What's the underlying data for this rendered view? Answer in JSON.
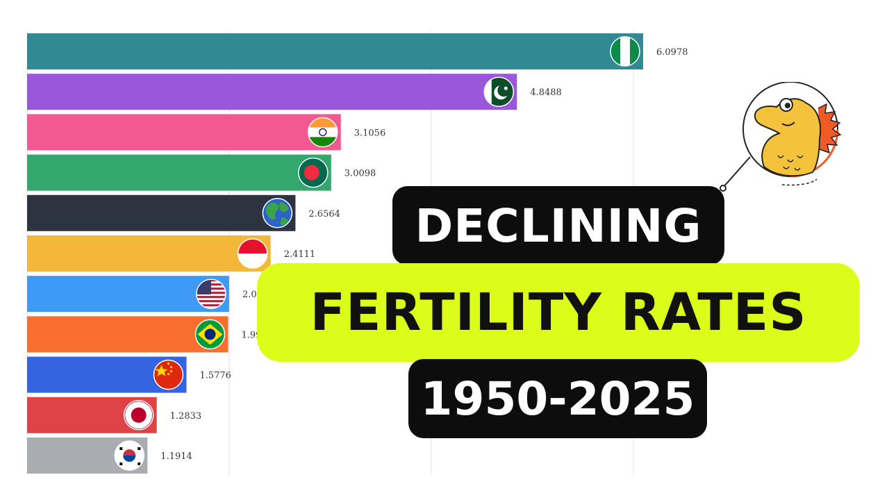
{
  "headline": {
    "line1": "DECLINING",
    "line2": "FERTILITY RATES",
    "line3": "1950-2025"
  },
  "chart_data": {
    "type": "bar",
    "orientation": "horizontal",
    "categories": [
      "Nigeria",
      "Pakistan",
      "India",
      "Bangladesh",
      "World",
      "Indonesia",
      "United States",
      "Brazil",
      "China",
      "Japan",
      "South Korea"
    ],
    "values": [
      6.0978,
      4.8488,
      3.1056,
      3.0098,
      2.6564,
      2.4111,
      2.0,
      1.99,
      1.5776,
      1.2833,
      1.1914
    ],
    "value_labels": [
      "6.0978",
      "4.8488",
      "3.1056",
      "3.0098",
      "2.6564",
      "2.4111",
      "2.0",
      "1.99",
      "1.5776",
      "1.2833",
      "1.1914"
    ],
    "colors": [
      "#2f8a94",
      "#9a57dc",
      "#f25990",
      "#34a86c",
      "#2e3342",
      "#f3b83a",
      "#3f9af5",
      "#f76e2d",
      "#3464e0",
      "#e04346",
      "#a9adb2"
    ],
    "flags": [
      "nigeria-flag",
      "pakistan-flag",
      "india-flag",
      "bangladesh-flag",
      "world-globe",
      "indonesia-flag",
      "usa-flag",
      "brazil-flag",
      "china-flag",
      "japan-flag",
      "south-korea-flag"
    ],
    "xlim": [
      0,
      6.0978
    ],
    "grid": "vertical",
    "legend": "none"
  },
  "mascot": {
    "icon": "dinosaur-mascot-icon",
    "accent": "#f05a24",
    "body": "#f5c33b"
  }
}
